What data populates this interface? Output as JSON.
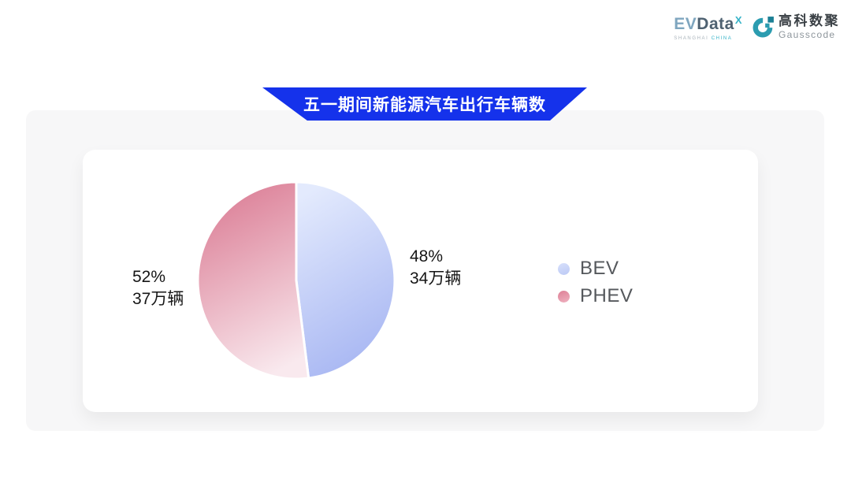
{
  "header": {
    "evdata": {
      "word_ev": "EV",
      "word_data": "Data",
      "sup_x": "X",
      "tagline_left": "SHANGHAI",
      "tagline_right": "CHINA"
    },
    "gausscode": {
      "name_cn": "高科数聚",
      "name_en": "Gausscode",
      "icon_color": "#2b9cb0",
      "icon_dark_color": "#1b7f95"
    }
  },
  "banner": {
    "title": "五一期间新能源汽车出行车辆数",
    "bg_color": "#1532eb",
    "text_color": "#ffffff"
  },
  "chart_data": {
    "type": "pie",
    "title": "五一期间新能源汽车出行车辆数",
    "unit": "万辆",
    "start_angle": "top",
    "direction": "clockwise",
    "legend_position": "right",
    "slices": [
      {
        "name": "BEV",
        "percent": 48,
        "percent_label": "48%",
        "value": 34,
        "value_label": "34万辆",
        "gradient_top": "#e3eafd",
        "gradient_bottom": "#a6b5f2",
        "legend_dot_top": "#d7e0fb",
        "legend_dot_bottom": "#bcc9f5"
      },
      {
        "name": "PHEV",
        "percent": 52,
        "percent_label": "52%",
        "value": 37,
        "value_label": "37万辆",
        "gradient_top": "#db7d95",
        "gradient_bottom": "#f9e9ee",
        "legend_dot_top": "#dd8096",
        "legend_dot_bottom": "#efb2c0"
      }
    ]
  }
}
